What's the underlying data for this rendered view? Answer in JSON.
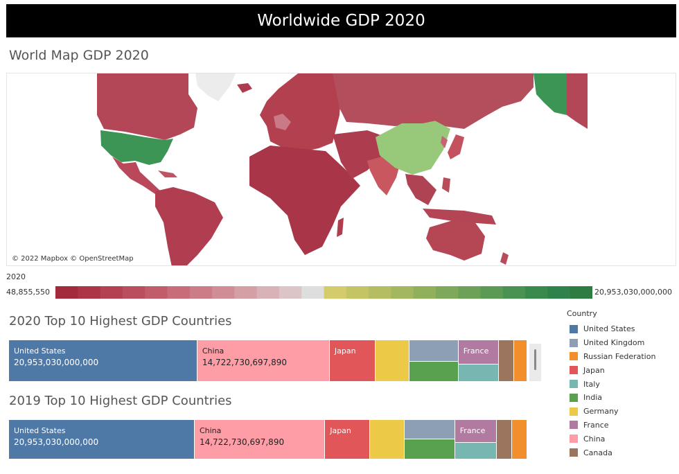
{
  "header": {
    "title": "Worldwide GDP 2020"
  },
  "map": {
    "title": "World Map GDP 2020",
    "attribution": "© 2022 Mapbox © OpenStreetMap",
    "colors": {
      "low": "#a83346",
      "mid": "#dedede",
      "high": "#2e7e3d",
      "us": "#3c9455",
      "china": "#98c87a",
      "india": "#c8575f",
      "japan": "#c4525e",
      "ocean": "#ffffff",
      "nodata": "#ececec"
    }
  },
  "color_legend": {
    "label": "2020",
    "min_label": "48,855,550",
    "max_label": "20,953,030,000,000",
    "steps": [
      "#a3293c",
      "#ab3446",
      "#b34152",
      "#ba4e5e",
      "#c15d6b",
      "#c76c78",
      "#cc7c87",
      "#d18d96",
      "#d59fa6",
      "#d9b2b7",
      "#dcc5c7",
      "#dedede",
      "#d4cc6c",
      "#c4c465",
      "#b4bd62",
      "#a3b75f",
      "#90b05c",
      "#7ea95a",
      "#6ca157",
      "#5a9a54",
      "#4a9251",
      "#3b8a4d",
      "#2f8249",
      "#2e7c41"
    ]
  },
  "chart_data": [
    {
      "type": "treemap",
      "title": "2020 Top 10 Highest GDP Countries",
      "categories": [
        "United States",
        "China",
        "Japan",
        "Germany",
        "United Kingdom",
        "India",
        "France",
        "Italy",
        "Canada",
        "Russian Federation"
      ],
      "values": [
        20953030000000,
        14722730697890,
        5057759000000,
        3846414000000,
        2759804000000,
        2660245000000,
        2630318000000,
        1888709000000,
        1644037000000,
        1483498000000
      ],
      "labels": [
        {
          "name": "United States",
          "value": "20,953,030,000,000"
        },
        {
          "name": "China",
          "value": "14,722,730,697,890"
        },
        {
          "name": "Japan"
        },
        {
          "name": ""
        },
        {
          "name": ""
        },
        {
          "name": ""
        },
        {
          "name": "France"
        },
        {
          "name": ""
        },
        {
          "name": ""
        },
        {
          "name": ""
        }
      ]
    },
    {
      "type": "treemap",
      "title": "2019 Top 10 Highest GDP Countries",
      "categories": [
        "United States",
        "China",
        "Japan",
        "Germany",
        "United Kingdom",
        "India",
        "France",
        "Italy",
        "Canada",
        "Russian Federation"
      ],
      "values": [
        20953030000000,
        14722730697890,
        5080000000000,
        3889000000000,
        2830000000000,
        2870000000000,
        2715000000000,
        2005000000000,
        1742000000000,
        1687000000000
      ],
      "labels": [
        {
          "name": "United States",
          "value": "20,953,030,000,000"
        },
        {
          "name": "China",
          "value": "14,722,730,697,890"
        },
        {
          "name": "Japan"
        },
        {
          "name": ""
        },
        {
          "name": ""
        },
        {
          "name": ""
        },
        {
          "name": "France"
        },
        {
          "name": ""
        },
        {
          "name": ""
        },
        {
          "name": ""
        }
      ]
    }
  ],
  "country_legend": {
    "title": "Country",
    "items": [
      {
        "name": "United States",
        "color": "#4e79a7"
      },
      {
        "name": "United Kingdom",
        "color": "#8c9fb5"
      },
      {
        "name": "Russian Federation",
        "color": "#f28e2b"
      },
      {
        "name": "Japan",
        "color": "#e15759"
      },
      {
        "name": "Italy",
        "color": "#76b7b2"
      },
      {
        "name": "India",
        "color": "#59a14f"
      },
      {
        "name": "Germany",
        "color": "#edc948"
      },
      {
        "name": "France",
        "color": "#b07aa1"
      },
      {
        "name": "China",
        "color": "#ff9da7"
      },
      {
        "name": "Canada",
        "color": "#9c755f"
      }
    ]
  }
}
